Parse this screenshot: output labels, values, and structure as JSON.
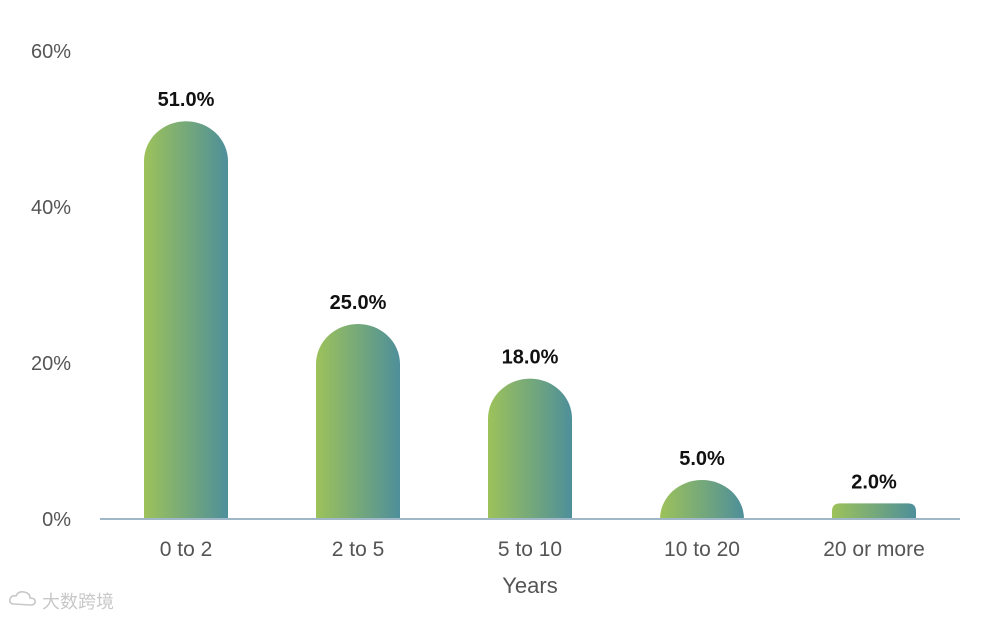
{
  "chart_data": {
    "type": "bar",
    "categories": [
      "0 to 2",
      "2 to 5",
      "5 to 10",
      "10 to 20",
      "20 or more"
    ],
    "values": [
      51.0,
      25.0,
      18.0,
      5.0,
      2.0
    ],
    "data_labels": [
      "51.0%",
      "25.0%",
      "18.0%",
      "5.0%",
      "2.0%"
    ],
    "xlabel": "Years",
    "ylabel": "",
    "ylim": [
      0,
      60
    ],
    "yticks": [
      0,
      20,
      40,
      60
    ],
    "ytick_labels": [
      "0%",
      "20%",
      "40%",
      "60%"
    ],
    "grid": false,
    "bar_gradient": [
      "#9dc25a",
      "#4e8f9a"
    ],
    "axis_color": "#9fb7c7"
  },
  "watermark": {
    "text": "大数跨境",
    "icon": "cloud-logo-icon"
  }
}
